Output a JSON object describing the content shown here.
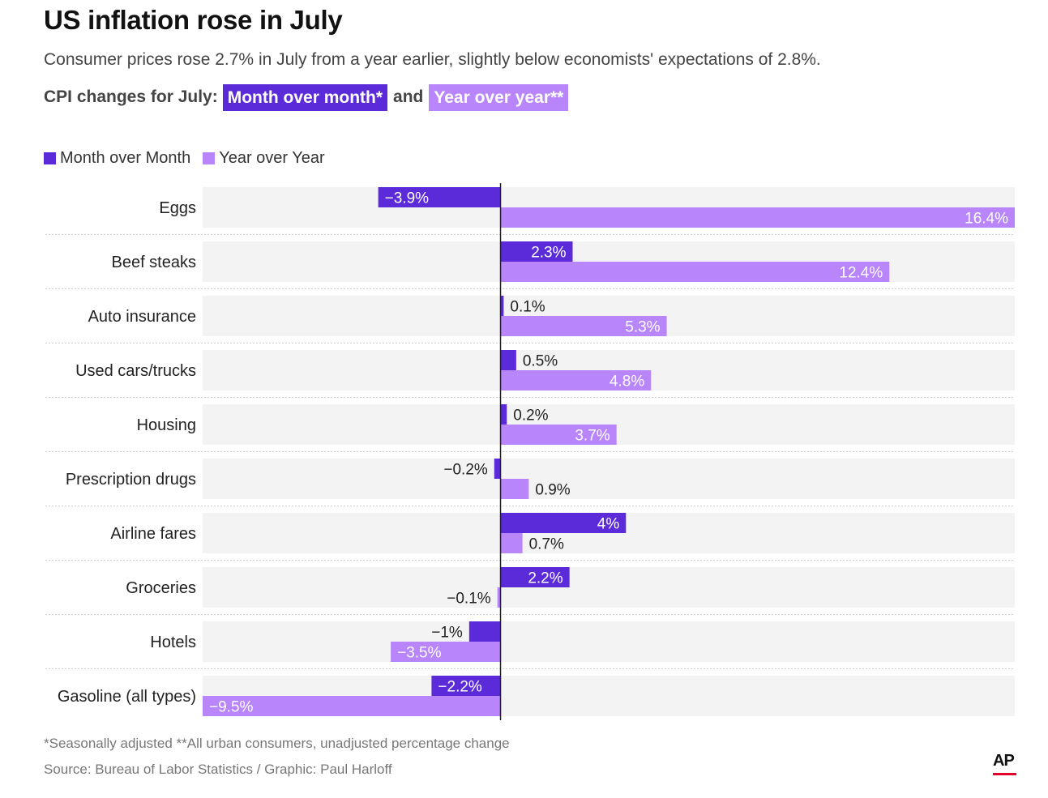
{
  "header": {
    "title": "US inflation rose in July",
    "subtitle": "Consumer prices rose 2.7% in July from a year earlier, slightly below economists' expectations of 2.8%.",
    "cpi_lead": "CPI changes for July:",
    "chip_mom": "Month over month*",
    "chip_and": "and",
    "chip_yoy": "Year over year**"
  },
  "legend": {
    "mom": "Month over Month",
    "yoy": "Year over Year"
  },
  "colors": {
    "mom": "#5b2bd9",
    "yoy": "#b885fb",
    "row_bg": "#f3f3f3",
    "axis": "#222222"
  },
  "chart_data": {
    "type": "bar",
    "orientation": "horizontal",
    "categories": [
      "Eggs",
      "Beef steaks",
      "Auto insurance",
      "Used cars/trucks",
      "Housing",
      "Prescription drugs",
      "Airline fares",
      "Groceries",
      "Hotels",
      "Gasoline (all types)"
    ],
    "series": [
      {
        "name": "Month over Month",
        "values": [
          -3.9,
          2.3,
          0.1,
          0.5,
          0.2,
          -0.2,
          4,
          2.2,
          -1,
          -2.2
        ],
        "labels": [
          "−3.9%",
          "2.3%",
          "0.1%",
          "0.5%",
          "0.2%",
          "−0.2%",
          "4%",
          "2.2%",
          "−1%",
          "−2.2%"
        ]
      },
      {
        "name": "Year over Year",
        "values": [
          16.4,
          12.4,
          5.3,
          4.8,
          3.7,
          0.9,
          0.7,
          -0.1,
          -3.5,
          -9.5
        ],
        "labels": [
          "16.4%",
          "12.4%",
          "5.3%",
          "4.8%",
          "3.7%",
          "0.9%",
          "0.7%",
          "−0.1%",
          "−3.5%",
          "−9.5%"
        ]
      }
    ],
    "xlim": [
      -9.5,
      16.4
    ],
    "grid": false,
    "legend_position": "top-left"
  },
  "footer": {
    "footnote": "*Seasonally adjusted **All urban consumers, unadjusted percentage change",
    "source": "Source: Bureau of Labor Statistics / Graphic: Paul Harloff",
    "logo": "AP"
  }
}
